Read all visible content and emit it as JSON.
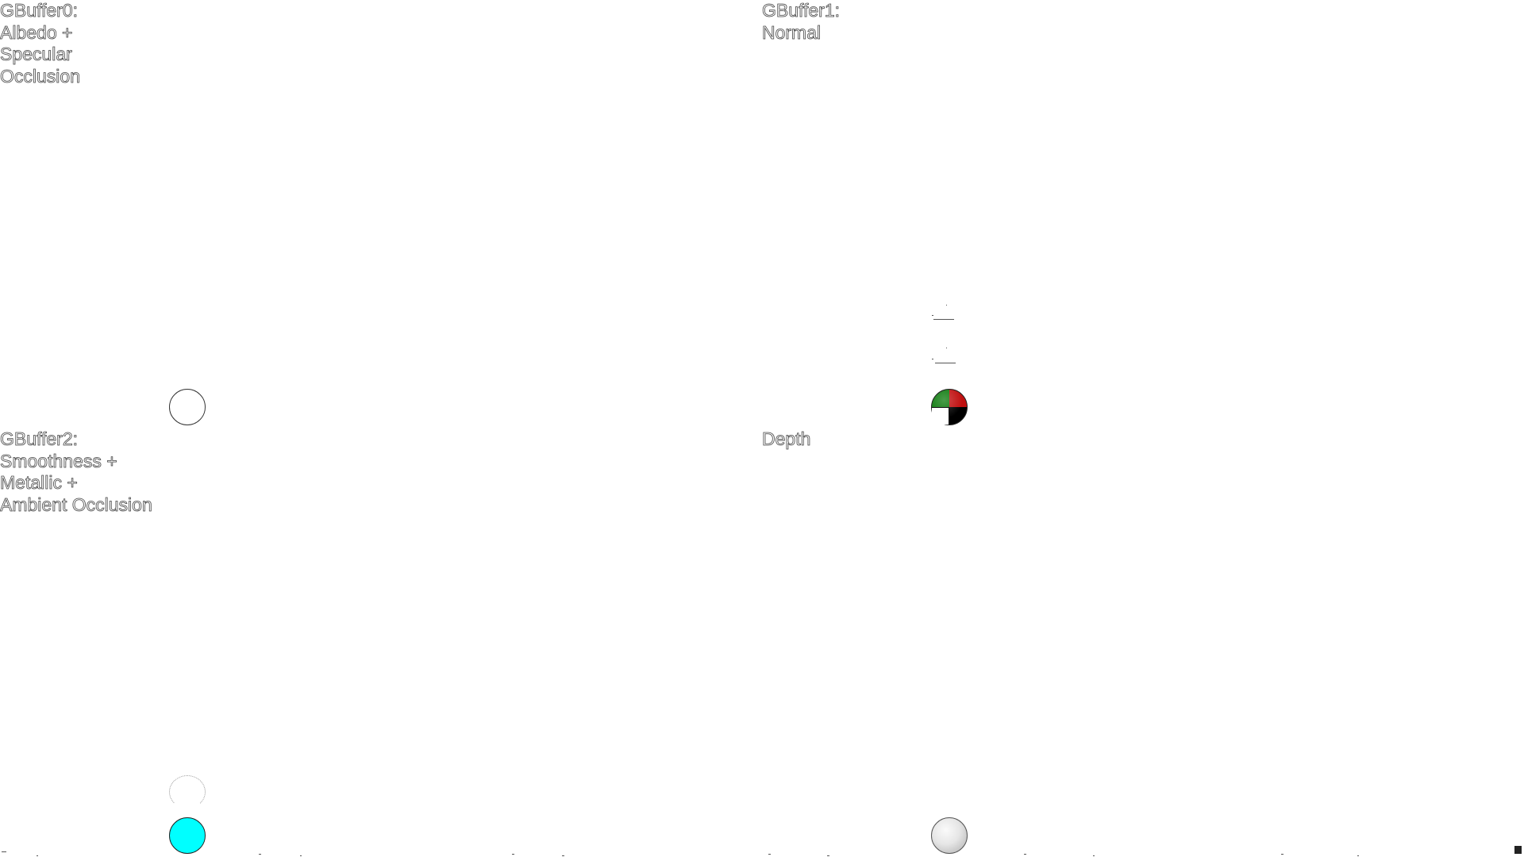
{
  "buffers": [
    {
      "id": "gbuffer0",
      "lines": [
        "GBuffer0:",
        "Albedo +",
        "Specular",
        "Occlusion"
      ],
      "sphere_color": "#ffffff"
    },
    {
      "id": "gbuffer1",
      "lines": [
        "GBuffer1:",
        "Normal"
      ],
      "sphere_colors": [
        "#1d9a1d",
        "#c01010",
        "#000000"
      ]
    },
    {
      "id": "gbuffer2",
      "lines": [
        "GBuffer2:",
        "Smoothness +",
        "Metallic +",
        "Ambient Occlusion"
      ],
      "sphere_color": "#00ffff"
    },
    {
      "id": "depth",
      "lines": [
        "Depth"
      ],
      "sphere_color": "#d9d9d9"
    }
  ]
}
